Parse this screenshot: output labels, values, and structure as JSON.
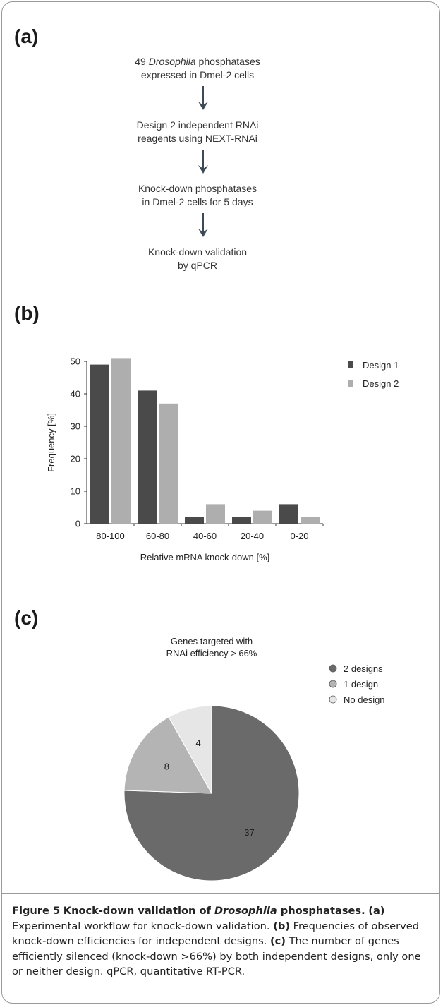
{
  "panels": {
    "a": {
      "letter": "(a)"
    },
    "b": {
      "letter": "(b)"
    },
    "c": {
      "letter": "(c)"
    }
  },
  "workflow": {
    "steps": [
      {
        "line1_pre": "49 ",
        "line1_italic": "Drosophila",
        "line1_post": " phosphatases",
        "line2": "expressed in Dmel-2 cells"
      },
      {
        "line1": "Design 2 independent RNAi",
        "line2": "reagents using NEXT-RNAi"
      },
      {
        "line1": "Knock-down phosphatases",
        "line2": "in Dmel-2 cells for 5 days"
      },
      {
        "line1": "Knock-down validation",
        "line2": "by qPCR"
      }
    ]
  },
  "chart_data": [
    {
      "type": "bar",
      "categories": [
        "80-100",
        "60-80",
        "40-60",
        "20-40",
        "0-20"
      ],
      "series": [
        {
          "name": "Design 1",
          "values": [
            49,
            41,
            2,
            2,
            6
          ],
          "color": "#4a4a4a"
        },
        {
          "name": "Design 2",
          "values": [
            51,
            37,
            6,
            4,
            2
          ],
          "color": "#aeaeae"
        }
      ],
      "xlabel": "Relative mRNA knock-down [%]",
      "ylabel": "Frequency [%]",
      "ylim": [
        0,
        50
      ],
      "yticks": [
        0,
        10,
        20,
        30,
        40,
        50
      ],
      "grid": false,
      "legend_position": "top-right"
    },
    {
      "type": "pie",
      "title_line1": "Genes targeted with",
      "title_line2": "RNAi efficiency > 66%",
      "slices": [
        {
          "label": "2 designs",
          "value": 37,
          "color": "#6a6a6a"
        },
        {
          "label": "1 design",
          "value": 8,
          "color": "#b4b4b4"
        },
        {
          "label": "No design",
          "value": 4,
          "color": "#e6e6e6"
        }
      ],
      "legend_position": "right"
    }
  ],
  "caption": {
    "fig_label": "Figure 5",
    "title_pre": "Knock-down validation of ",
    "title_italic": "Drosophila",
    "title_post": " phosphatases.",
    "a_label": "(a)",
    "a_text": "Experimental workflow for knock-down validation.",
    "b_label": "(b)",
    "b_text": "Frequencies of observed knock-down efficiencies for independent designs.",
    "c_label": "(c)",
    "c_text": "The number of genes efficiently silenced (knock-down >66%) by both independent designs, only one or neither design. qPCR, quantitative RT-PCR."
  }
}
